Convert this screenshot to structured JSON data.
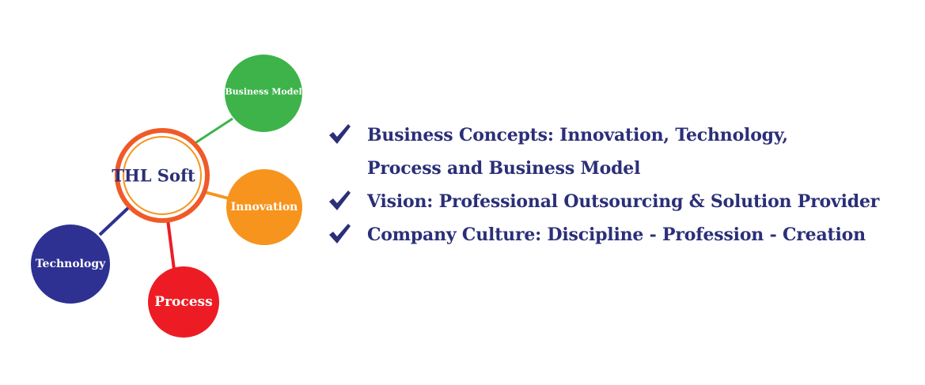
{
  "diagram": {
    "center": {
      "label": "THL Soft",
      "ring_color": "#f05a28",
      "ring_accent_color": "#f7941d"
    },
    "nodes": [
      {
        "key": "business_model",
        "label": "Business Model",
        "color": "#3db34a"
      },
      {
        "key": "innovation",
        "label": "Innovation",
        "color": "#f7941d"
      },
      {
        "key": "process",
        "label": "Process",
        "color": "#ed1c24"
      },
      {
        "key": "technology",
        "label": "Technology",
        "color": "#2e3192"
      }
    ]
  },
  "bullets": [
    {
      "lines": [
        "Business Concepts: Innovation, Technology,",
        "Process and Business Model"
      ]
    },
    {
      "lines": [
        "Vision: Professional Outsourcing & Solution Provider"
      ]
    },
    {
      "lines": [
        "Company Culture: Discipline - Profession - Creation"
      ]
    }
  ],
  "colors": {
    "text": "#2b2f78",
    "check": "#2b2f78"
  }
}
